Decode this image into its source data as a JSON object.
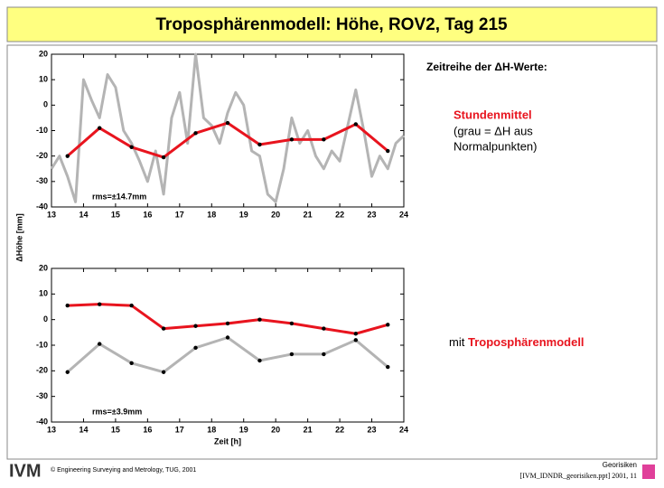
{
  "header": {
    "title": "Troposphärenmodell: Höhe, ROV2, Tag 215"
  },
  "notes": {
    "heading": "Zeitreihe der ΔH-Werte:",
    "highlight": "Stundenmittel",
    "line1": "(grau = ΔH aus",
    "line2": "Normalpunkten)",
    "bottom_prefix": "mit",
    "bottom_highlight": "Troposphärenmodell"
  },
  "footer": {
    "logo": "IVM",
    "copyright": "© Engineering Surveying and Metrology, TUG, 2001",
    "topic": "Georisiken",
    "file": "[IVM_IDNDR_georisiken.ppt] 2001, 11"
  },
  "chart_data": [
    {
      "type": "line",
      "ylabel": "ΔHöhe [mm]",
      "annotation": "rms=±14.7mm",
      "xlim": [
        13,
        24
      ],
      "xticks": [
        13,
        14,
        15,
        16,
        17,
        18,
        19,
        20,
        21,
        22,
        23,
        24
      ],
      "ylim": [
        -40,
        20
      ],
      "yticks": [
        -40,
        -30,
        -20,
        -10,
        0,
        10,
        20
      ],
      "series": [
        {
          "color": "#b4b4b4",
          "markers": false,
          "x": [
            13,
            13.25,
            13.5,
            13.75,
            14,
            14.25,
            14.5,
            14.75,
            15,
            15.25,
            15.5,
            15.75,
            16,
            16.25,
            16.5,
            16.75,
            17,
            17.25,
            17.5,
            17.75,
            18,
            18.25,
            18.5,
            18.75,
            19,
            19.25,
            19.5,
            19.75,
            20,
            20.25,
            20.5,
            20.75,
            21,
            21.25,
            21.5,
            21.75,
            22,
            22.25,
            22.5,
            22.75,
            23,
            23.25,
            23.5,
            23.75,
            24
          ],
          "values": [
            -25,
            -20,
            -28,
            -38,
            10,
            2,
            -5,
            12,
            7,
            -10,
            -15,
            -22,
            -30,
            -18,
            -35,
            -5,
            5,
            -15,
            20,
            -5,
            -8,
            -15,
            -3,
            5,
            0,
            -18,
            -20,
            -35,
            -38,
            -25,
            -5,
            -15,
            -10,
            -20,
            -25,
            -18,
            -22,
            -8,
            6,
            -10,
            -28,
            -20,
            -25,
            -15,
            -12
          ]
        },
        {
          "color": "#e8141e",
          "markers": true,
          "x": [
            13.5,
            14.5,
            15.5,
            16.5,
            17.5,
            18.5,
            19.5,
            20.5,
            21.5,
            22.5,
            23.5
          ],
          "values": [
            -20,
            -9,
            -16.5,
            -20.5,
            -11,
            -7,
            -15.5,
            -13.5,
            -13.5,
            -7.5,
            -18
          ]
        }
      ]
    },
    {
      "type": "line",
      "xlabel": "Zeit [h]",
      "annotation": "rms=±3.9mm",
      "xlim": [
        13,
        24
      ],
      "xticks": [
        13,
        14,
        15,
        16,
        17,
        18,
        19,
        20,
        21,
        22,
        23,
        24
      ],
      "ylim": [
        -40,
        20
      ],
      "yticks": [
        -40,
        -30,
        -20,
        -10,
        0,
        10,
        20
      ],
      "series": [
        {
          "color": "#b4b4b4",
          "markers": true,
          "x": [
            13.5,
            14.5,
            15.5,
            16.5,
            17.5,
            18.5,
            19.5,
            20.5,
            21.5,
            22.5,
            23.5
          ],
          "values": [
            -20.5,
            -9.5,
            -17,
            -20.5,
            -11,
            -7,
            -16,
            -13.5,
            -13.5,
            -8,
            -18.5
          ]
        },
        {
          "color": "#e8141e",
          "markers": true,
          "x": [
            13.5,
            14.5,
            15.5,
            16.5,
            17.5,
            18.5,
            19.5,
            20.5,
            21.5,
            22.5,
            23.5
          ],
          "values": [
            5.5,
            6,
            5.5,
            -3.5,
            -2.5,
            -1.5,
            0,
            -1.5,
            -3.5,
            -5.5,
            -2
          ]
        }
      ]
    }
  ]
}
